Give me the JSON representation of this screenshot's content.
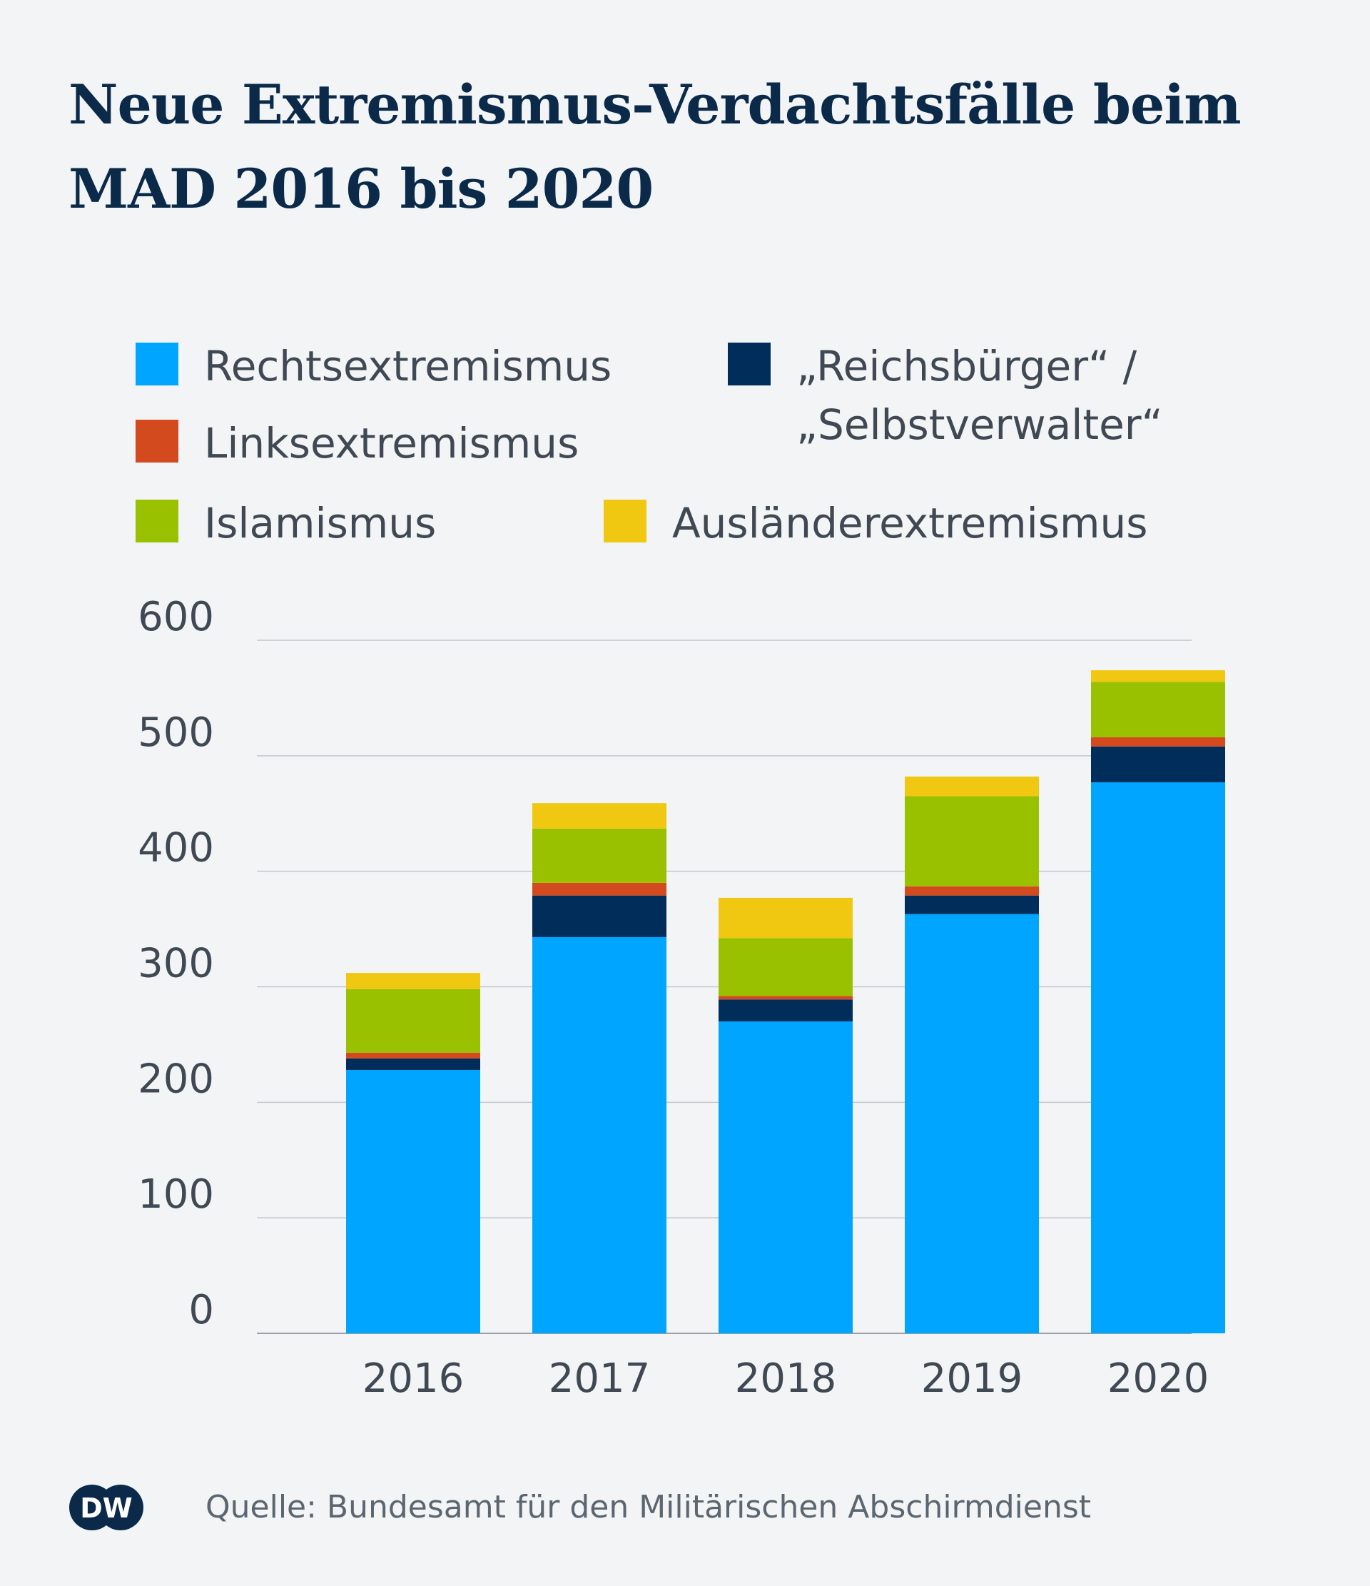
{
  "colors": {
    "background": "#f2f4f6",
    "title": "#0b2a4a",
    "grid": "#c3c8cd",
    "axis": "#9aa1a8"
  },
  "chart_data": {
    "type": "bar",
    "stacked": true,
    "title": "Neue Extremismus-Verdachtsfälle beim MAD 2016 bis 2020",
    "xlabel": "",
    "ylabel": "",
    "categories": [
      "2016",
      "2017",
      "2018",
      "2019",
      "2020"
    ],
    "ylim": [
      0,
      600
    ],
    "yticks": [
      0,
      100,
      200,
      300,
      400,
      500,
      600
    ],
    "grid": true,
    "series": [
      {
        "name": "Rechtsextremismus",
        "color": "#00a5ff",
        "values": [
          228,
          343,
          270,
          363,
          477
        ]
      },
      {
        "name": "„Reichsbürger“ / „Selbstverwalter“",
        "label_line1": "„Reichsbürger“ /",
        "label_line2": "„Selbstverwalter“",
        "color": "#002d5a",
        "values": [
          10,
          36,
          19,
          16,
          31
        ]
      },
      {
        "name": "Linksextremismus",
        "color": "#d44a1f",
        "values": [
          5,
          11,
          3,
          8,
          8
        ]
      },
      {
        "name": "Islamismus",
        "color": "#9ac100",
        "values": [
          55,
          47,
          50,
          78,
          48
        ]
      },
      {
        "name": "Ausländerextremismus",
        "color": "#f0c812",
        "values": [
          14,
          22,
          35,
          17,
          10
        ]
      }
    ]
  },
  "footer": {
    "logo_text": "DW",
    "source": "Quelle: Bundesamt für den Militärischen Abschirmdienst"
  }
}
